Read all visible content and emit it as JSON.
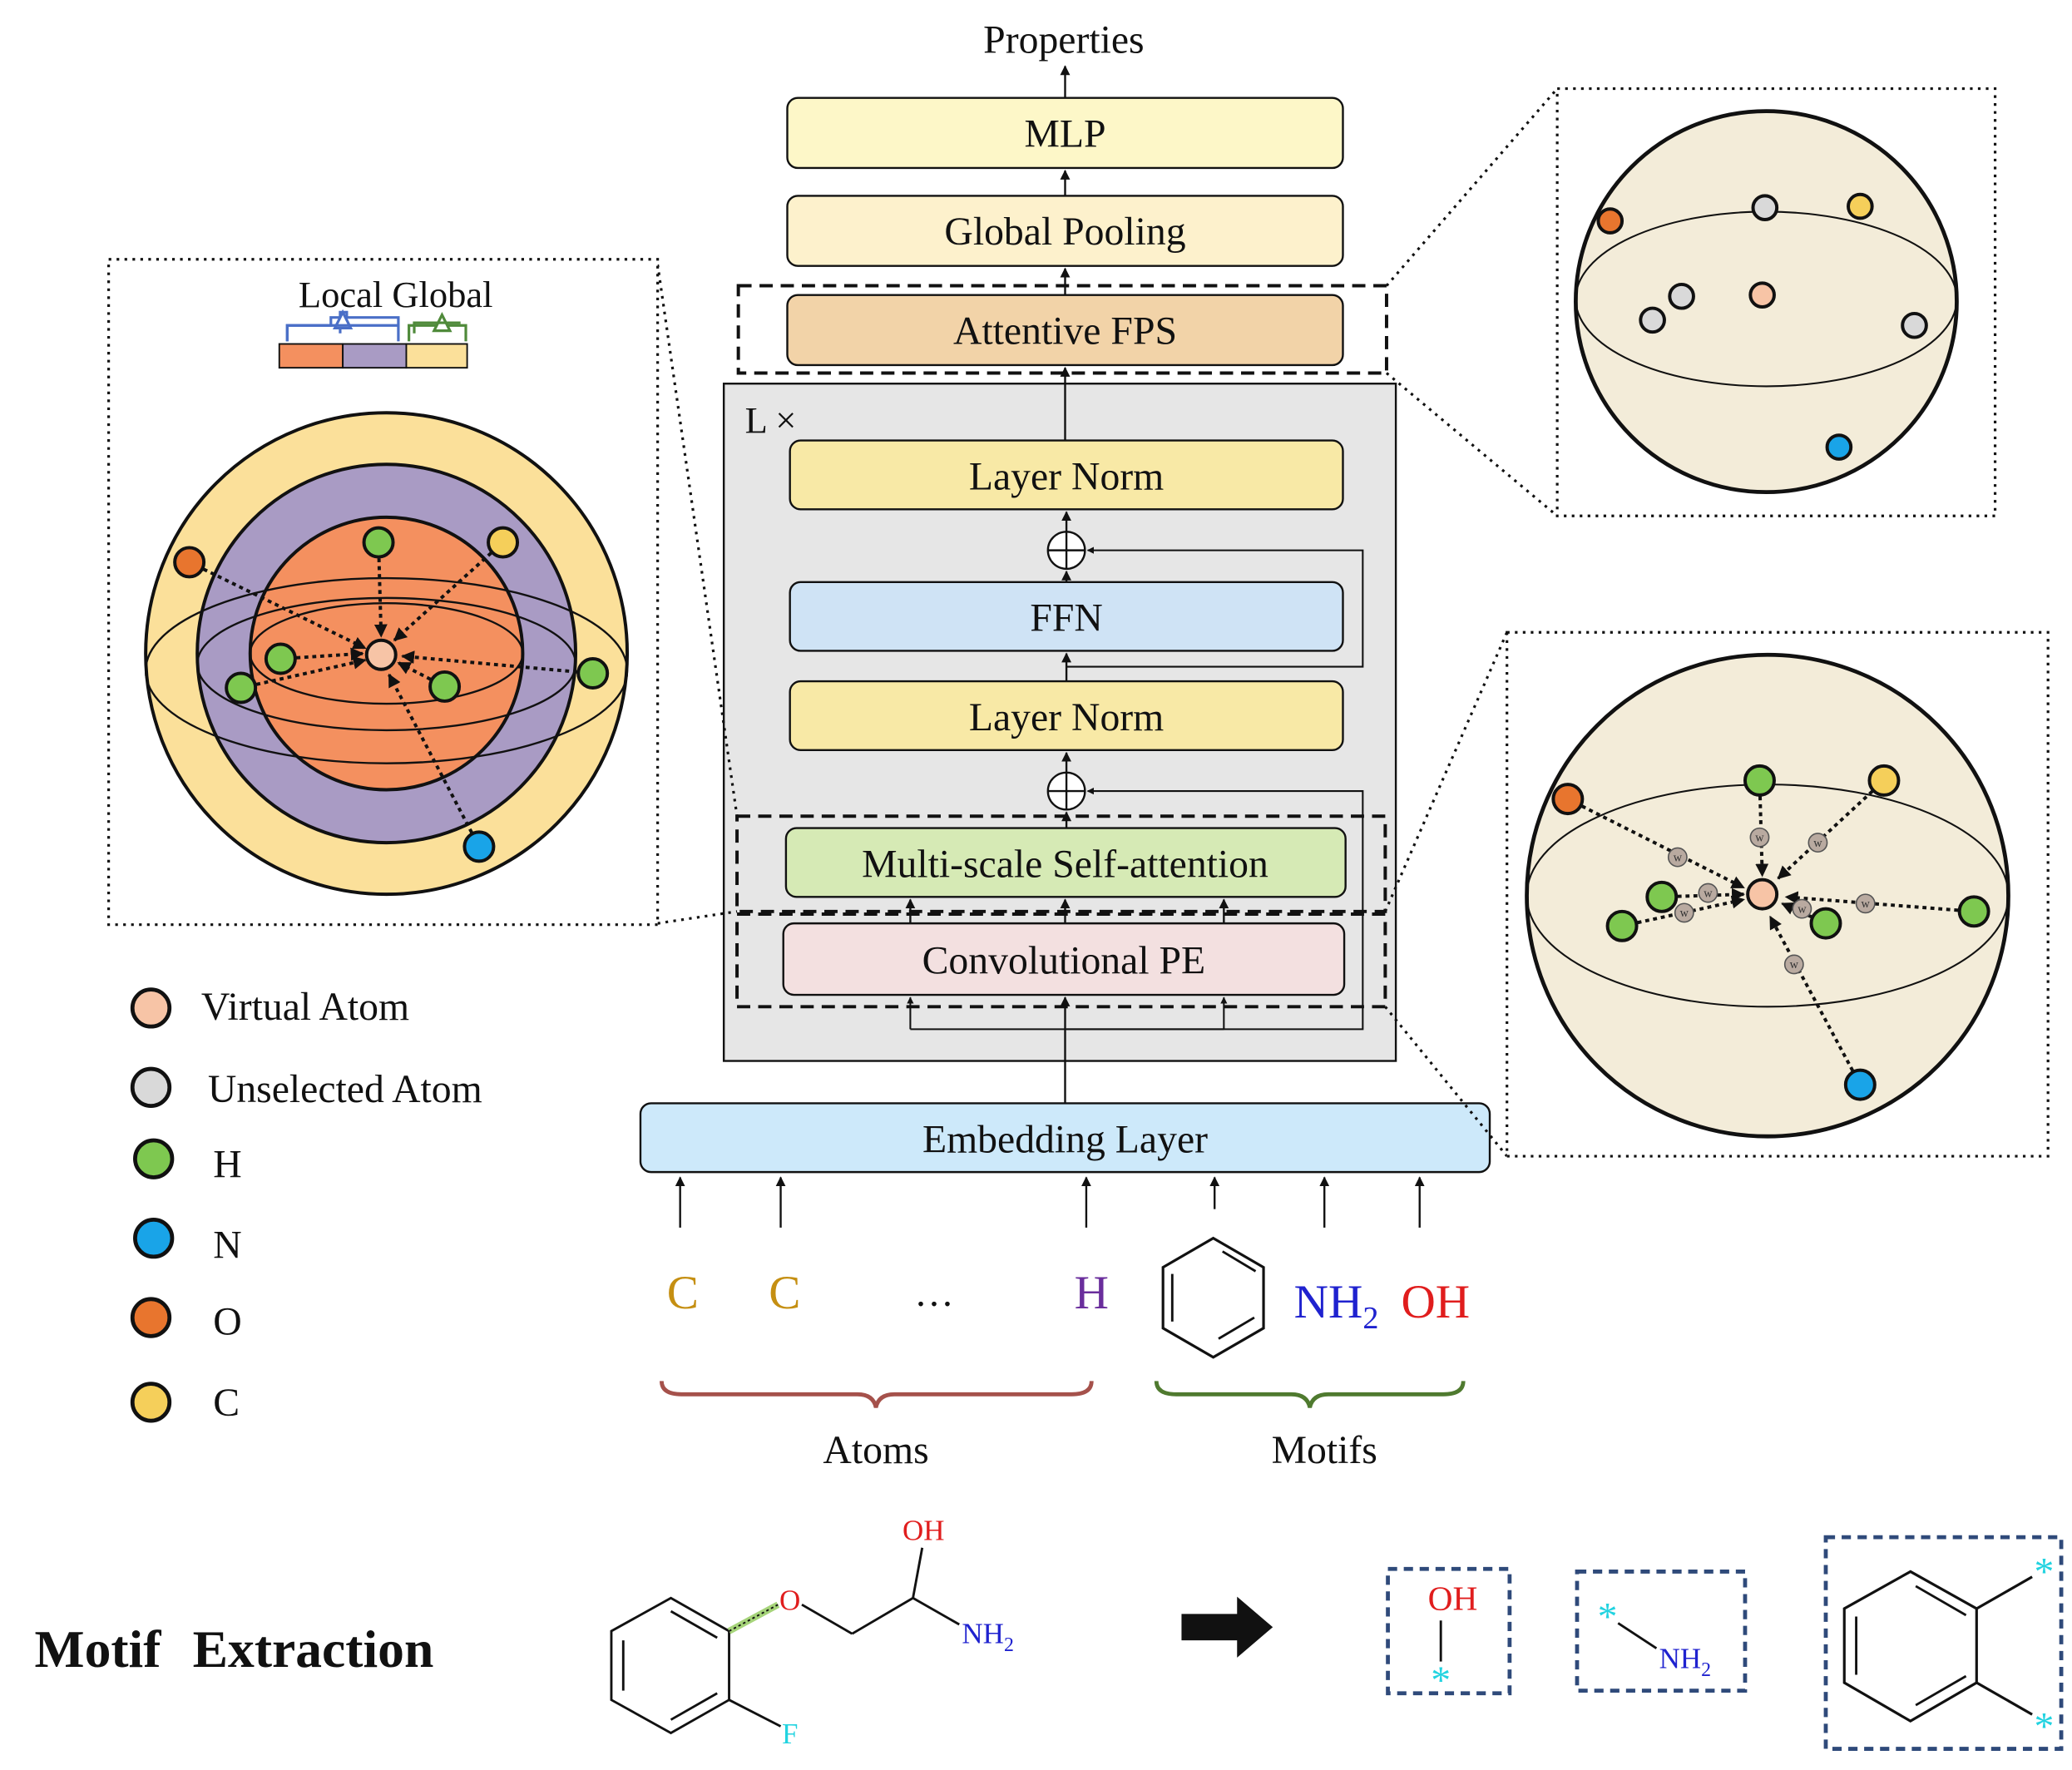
{
  "top_output": "Properties",
  "stack": {
    "mlp": "MLP",
    "global_pooling": "Global Pooling",
    "attentive_fps": "Attentive FPS",
    "repeat_label": "L ×",
    "layer_norm_top": "Layer Norm",
    "ffn": "FFN",
    "layer_norm_bottom": "Layer Norm",
    "multi_scale_attention": "Multi-scale Self-attention",
    "conv_pe": "Convolutional PE",
    "embedding": "Embedding Layer"
  },
  "inputs": {
    "atoms": [
      "C",
      "C",
      "…",
      "H"
    ],
    "motifs": {
      "nh": "NH",
      "nh_sub": "2",
      "oh": "OH"
    },
    "atoms_label": "Atoms",
    "motifs_label": "Motifs"
  },
  "local_global": {
    "title": "Local Global"
  },
  "legend": [
    {
      "label": "Virtual Atom",
      "color": "#f7c4a6"
    },
    {
      "label": "Unselected Atom",
      "color": "#d9d9d9"
    },
    {
      "label": "H",
      "color": "#7ec850"
    },
    {
      "label": "N",
      "color": "#19a4e8"
    },
    {
      "label": "O",
      "color": "#e8752e"
    },
    {
      "label": "C",
      "color": "#f5cf5a"
    }
  ],
  "motif_extraction": {
    "title_1": "Motif",
    "title_2": "Extraction",
    "mol_oh": "OH",
    "mol_o": "O",
    "mol_nh": "NH",
    "mol_nh_sub": "2",
    "mol_f": "F",
    "frag_oh": "OH",
    "frag_nh": "NH",
    "frag_nh_sub": "2",
    "star": "*",
    "weight_mark": "w"
  },
  "colors": {
    "mlp": "#fdf7c8",
    "pooling": "#fdf1cc",
    "fps": "#f2d3a8",
    "layernorm": "#f8e9a6",
    "ffn": "#cfe3f5",
    "attention": "#d6eab5",
    "conv": "#f3e0e0",
    "embedding": "#cde9fa",
    "panel": "#e6e6e6",
    "sphere": "#f3ecd9",
    "outer_ring": "#fbe09a",
    "mid_ring": "#a99bc4",
    "inner_ring": "#f4905f",
    "atom_c_text": "#c58f12",
    "atom_h_text": "#6a2e9c",
    "nh_text": "#1f22cf",
    "oh_text": "#e01d1d",
    "brace_atoms": "#a5514b",
    "brace_motifs": "#4f7a2f",
    "cyan_star": "#22d3e0",
    "bond_highlight": "#a6d47a"
  }
}
